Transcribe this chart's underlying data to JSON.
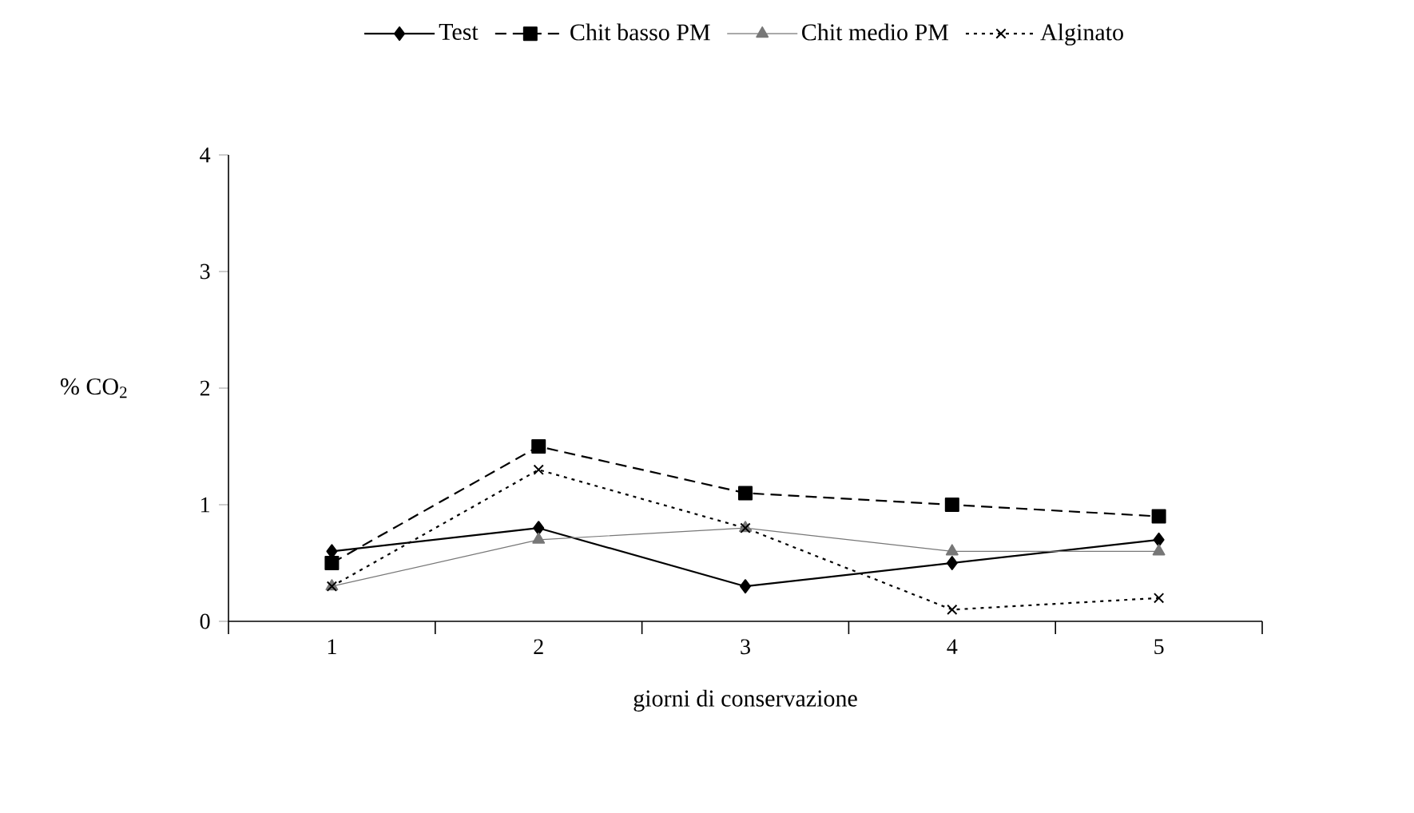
{
  "chart_data": {
    "type": "line",
    "categories": [
      "1",
      "2",
      "3",
      "4",
      "5"
    ],
    "xlabel": "giorni di conservazione",
    "ylabel": "% CO$_{2}$",
    "ylim": [
      0,
      4
    ],
    "yticks": [
      0,
      1,
      2,
      3,
      4
    ],
    "grid": false,
    "legend": "top",
    "series": [
      {
        "name": "Test",
        "color": "#000000",
        "marker": "diamond",
        "line_style": "solid",
        "values": [
          0.6,
          0.8,
          0.3,
          0.5,
          0.7
        ]
      },
      {
        "name": "Chit basso PM",
        "color": "#000000",
        "marker": "square",
        "line_style": "dashed",
        "values": [
          0.5,
          1.5,
          1.1,
          1.0,
          0.9
        ]
      },
      {
        "name": "Chit medio PM",
        "color": "#777777",
        "marker": "triangle",
        "line_style": "solid",
        "values": [
          0.3,
          0.7,
          0.8,
          0.6,
          0.6
        ]
      },
      {
        "name": "Alginato",
        "color": "#000000",
        "marker": "cross",
        "line_style": "dotted",
        "values": [
          0.3,
          1.3,
          0.8,
          0.1,
          0.2
        ]
      }
    ]
  }
}
